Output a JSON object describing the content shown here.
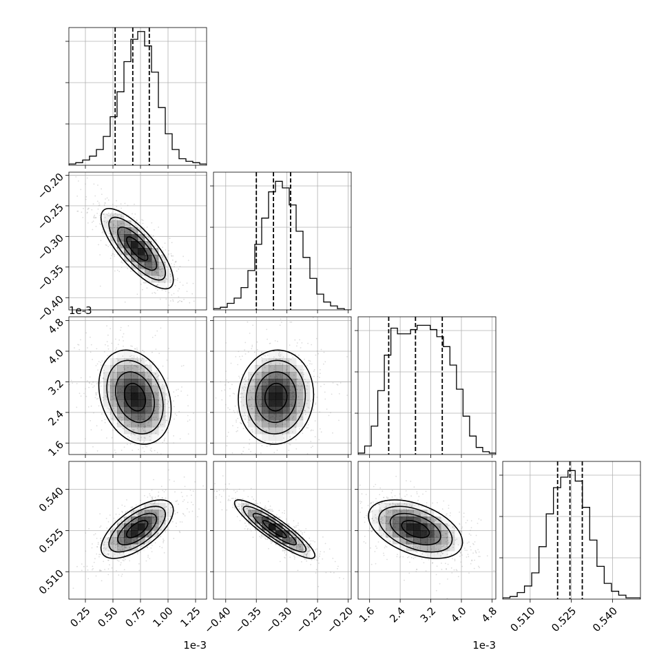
{
  "chart_data": {
    "type": "corner",
    "parameters": [
      {
        "range": [
          0.0001,
          0.00135
        ],
        "ticks": [
          0.00025,
          0.0005,
          0.00075,
          0.001,
          0.00125
        ],
        "tick_labels": [
          "0.25",
          "0.50",
          "0.75",
          "1.00",
          "1.25"
        ],
        "offset_label": "1e-3",
        "quantiles": [
          0.00052,
          0.00068,
          0.00083
        ],
        "hist": [
          1,
          2,
          4,
          7,
          12,
          22,
          37,
          56,
          79,
          96,
          102,
          91,
          71,
          44,
          24,
          12,
          5,
          3,
          2,
          1
        ],
        "hist_max": 105
      },
      {
        "range": [
          -0.42,
          -0.195
        ],
        "ticks": [
          -0.4,
          -0.35,
          -0.3,
          -0.25,
          -0.2
        ],
        "tick_labels": [
          "−0.40",
          "−0.35",
          "−0.30",
          "−0.25",
          "−0.20"
        ],
        "offset_label": "",
        "quantiles": [
          -0.35,
          -0.322,
          -0.294
        ],
        "hist": [
          1,
          2,
          5,
          9,
          17,
          30,
          50,
          70,
          90,
          98,
          93,
          80,
          60,
          40,
          24,
          12,
          6,
          3,
          1,
          0
        ],
        "hist_max": 105
      },
      {
        "range": [
          0.0013,
          0.0049
        ],
        "ticks": [
          0.0016,
          0.0024,
          0.0032,
          0.004,
          0.0048
        ],
        "tick_labels": [
          "1.6",
          "2.4",
          "3.2",
          "4.0",
          "4.8"
        ],
        "offset_label": "1e-3",
        "quantiles": [
          0.0021,
          0.0028,
          0.0035
        ],
        "hist": [
          1,
          6,
          20,
          45,
          70,
          89,
          85,
          85,
          88,
          91,
          91,
          88,
          83,
          76,
          63,
          46,
          27,
          13,
          5,
          2,
          1
        ],
        "hist_max": 97
      },
      {
        "range": [
          0.5,
          0.5502
        ],
        "ticks": [
          0.51,
          0.525,
          0.54
        ],
        "tick_labels": [
          "0.510",
          "0.525",
          "0.540"
        ],
        "offset_label": "",
        "quantiles": [
          0.52,
          0.5245,
          0.529
        ],
        "hist": [
          1,
          2,
          5,
          10,
          20,
          40,
          65,
          85,
          93,
          98,
          90,
          70,
          45,
          25,
          12,
          6,
          3,
          1,
          1
        ],
        "hist_max": 105
      }
    ],
    "pairs": [
      {
        "row": 1,
        "col": 0,
        "mean": [
          0.00072,
          -0.32
        ],
        "sd": [
          0.00016,
          0.032
        ],
        "corr": -0.78
      },
      {
        "row": 2,
        "col": 0,
        "mean": [
          0.0007,
          0.0028
        ],
        "sd": [
          0.00016,
          0.0006
        ],
        "corr": -0.25
      },
      {
        "row": 2,
        "col": 1,
        "mean": [
          -0.318,
          0.0028
        ],
        "sd": [
          0.03,
          0.0006
        ],
        "corr": 0.05
      },
      {
        "row": 3,
        "col": 0,
        "mean": [
          0.00072,
          0.5255
        ],
        "sd": [
          0.00016,
          0.0052
        ],
        "corr": 0.65
      },
      {
        "row": 3,
        "col": 1,
        "mean": [
          -0.32,
          0.5255
        ],
        "sd": [
          0.032,
          0.0052
        ],
        "corr": -0.9
      },
      {
        "row": 3,
        "col": 2,
        "mean": [
          0.0028,
          0.5255
        ],
        "sd": [
          0.0006,
          0.0052
        ],
        "corr": -0.45
      }
    ],
    "grid": true
  }
}
